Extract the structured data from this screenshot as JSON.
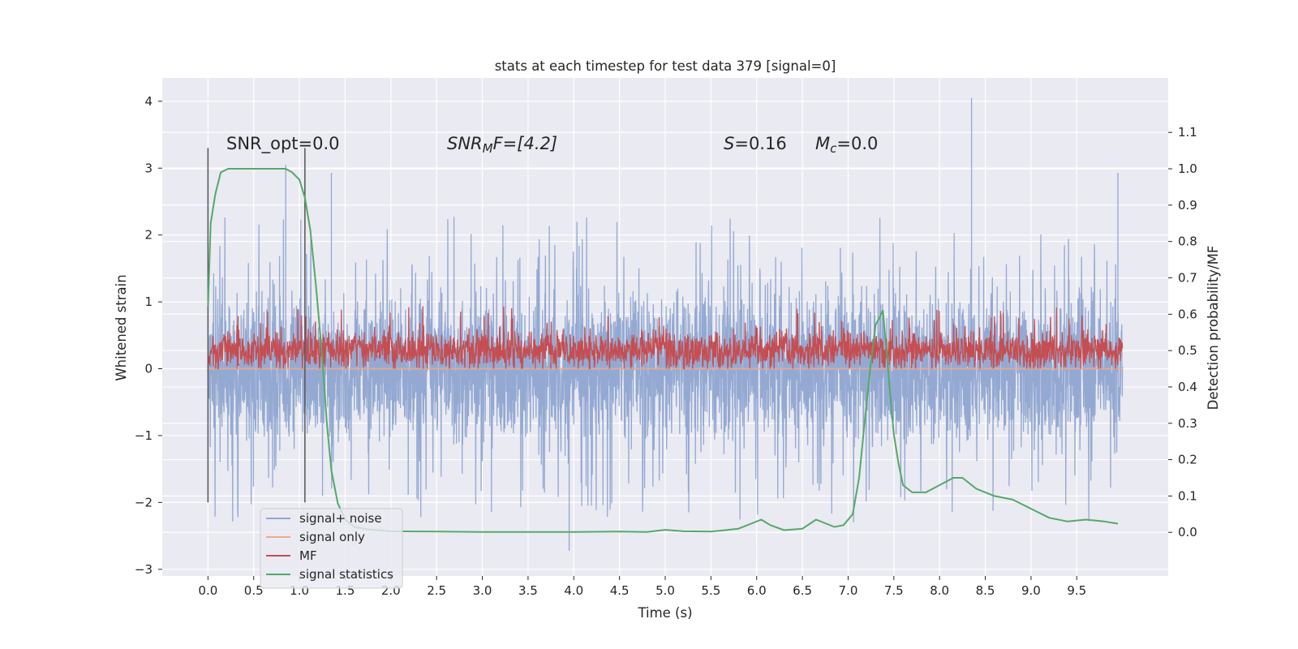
{
  "chart_data": {
    "type": "line",
    "title": "stats at each timestep for test data 379 [signal=0]",
    "xlabel": "Time (s)",
    "ylabel": "Whitened strain",
    "ylabel_right": "Detection probability/MF",
    "xlim": [
      -0.5,
      10.5
    ],
    "ylim": [
      -3.1,
      4.35
    ],
    "ylim_right": [
      -0.12,
      1.25
    ],
    "xticks": [
      "0.0",
      "0.5",
      "1.0",
      "1.5",
      "2.0",
      "2.5",
      "3.0",
      "3.5",
      "4.0",
      "4.5",
      "5.0",
      "5.5",
      "6.0",
      "6.5",
      "7.0",
      "7.5",
      "8.0",
      "8.5",
      "9.0",
      "9.5"
    ],
    "yticks": [
      "4",
      "3",
      "2",
      "1",
      "0",
      "−1",
      "−2",
      "−3"
    ],
    "yticks_right": [
      "1.1",
      "1.0",
      "0.9",
      "0.8",
      "0.7",
      "0.6",
      "0.5",
      "0.4",
      "0.3",
      "0.2",
      "0.1",
      "0.0"
    ],
    "grid": true,
    "legend_position": "lower-left",
    "colors": {
      "signal_noise": "#8fa5d0",
      "signal_only": "#eea98a",
      "mf": "#c44e52",
      "statistics": "#55a868",
      "vline": "#555555",
      "plot_bg": "#eaeaf2",
      "grid": "#ffffff"
    },
    "annotations": {
      "snr_opt": "SNR_opt=0.0",
      "snr_mf_label": "SNR",
      "snr_mf_sub": "M",
      "snr_mf_value": "F=[4.2]",
      "s_label": "S",
      "s_value": "=0.16",
      "mc_label": "M",
      "mc_sub": "c",
      "mc_value": "=0.0"
    },
    "vertical_lines": {
      "x": [
        0.0,
        1.06
      ],
      "y_range": [
        -2.0,
        3.3
      ]
    },
    "series": [
      {
        "name": "signal+ noise",
        "description_of_values": "white-noise whitened strain sampled across 0 to 10 s",
        "x_range": [
          0.0,
          10.0
        ],
        "typical_band": [
          -1.3,
          1.3
        ],
        "extremes": [
          -2.7,
          4.05
        ],
        "notable_spikes": [
          [
            0.85,
            3.05
          ],
          [
            1.35,
            2.93
          ],
          [
            8.35,
            4.05
          ],
          [
            9.95,
            2.93
          ],
          [
            3.95,
            -2.72
          ]
        ]
      },
      {
        "name": "signal only",
        "x_range": [
          0.0,
          10.0
        ],
        "values_constant": 0.0
      },
      {
        "name": "MF",
        "description_of_values": "matched-filter output, noisy band",
        "x_range": [
          0.0,
          10.0
        ],
        "typical_band": [
          0.0,
          0.6
        ],
        "extremes": [
          0.0,
          1.0
        ]
      },
      {
        "name": "signal statistics",
        "axis": "right",
        "x": [
          0.0,
          0.03,
          0.08,
          0.14,
          0.22,
          0.35,
          0.5,
          0.7,
          0.85,
          0.92,
          1.0,
          1.06,
          1.12,
          1.18,
          1.25,
          1.3,
          1.35,
          1.42,
          1.5,
          1.6,
          1.75,
          2.0,
          2.5,
          3.0,
          3.5,
          4.0,
          4.5,
          4.8,
          5.0,
          5.2,
          5.5,
          5.8,
          5.95,
          6.05,
          6.15,
          6.3,
          6.5,
          6.65,
          6.75,
          6.85,
          6.95,
          7.05,
          7.12,
          7.18,
          7.25,
          7.3,
          7.38,
          7.42,
          7.46,
          7.5,
          7.55,
          7.6,
          7.7,
          7.85,
          8.0,
          8.15,
          8.25,
          8.4,
          8.6,
          8.8,
          9.0,
          9.2,
          9.4,
          9.6,
          9.8,
          9.95
        ],
        "values": [
          0.62,
          0.85,
          0.93,
          0.99,
          1.0,
          1.0,
          1.0,
          1.0,
          1.0,
          0.99,
          0.97,
          0.92,
          0.83,
          0.68,
          0.48,
          0.3,
          0.17,
          0.08,
          0.035,
          0.015,
          0.008,
          0.003,
          0.002,
          0.001,
          0.001,
          0.001,
          0.002,
          0.001,
          0.007,
          0.003,
          0.002,
          0.01,
          0.025,
          0.035,
          0.02,
          0.006,
          0.01,
          0.035,
          0.025,
          0.015,
          0.02,
          0.05,
          0.15,
          0.3,
          0.47,
          0.57,
          0.61,
          0.5,
          0.38,
          0.27,
          0.19,
          0.13,
          0.11,
          0.11,
          0.13,
          0.15,
          0.15,
          0.12,
          0.1,
          0.09,
          0.065,
          0.04,
          0.03,
          0.035,
          0.03,
          0.024
        ]
      }
    ]
  }
}
